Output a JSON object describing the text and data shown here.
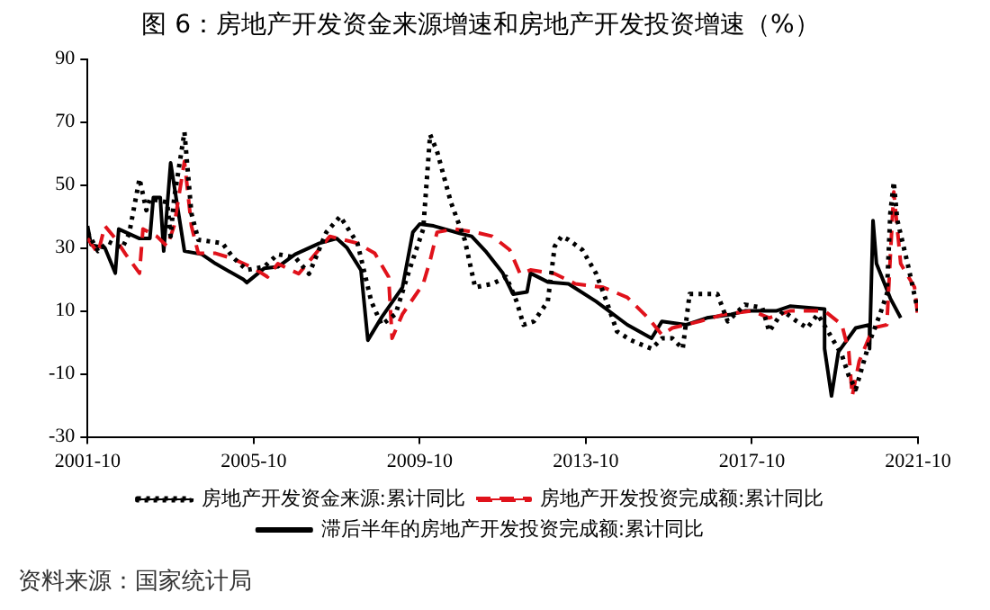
{
  "chart_data": {
    "type": "line",
    "title": "图 6：房地产开发资金来源增速和房地产开发投资增速（%）",
    "xlim": [
      "2001-10",
      "2021-10"
    ],
    "xticks": [
      "2001-10",
      "2005-10",
      "2009-10",
      "2013-10",
      "2017-10",
      "2021-10"
    ],
    "ylim": [
      -30,
      90
    ],
    "yticks": [
      -30,
      -10,
      10,
      30,
      50,
      70,
      90
    ],
    "grid": false,
    "legend": "bottom",
    "marker": "none",
    "series": [
      {
        "name": "房地产开发资金来源:累计同比",
        "color": "#000000",
        "line_style": "dotted",
        "x": [
          "2001-10",
          "2002-01",
          "2002-04",
          "2002-08",
          "2002-10",
          "2003-01",
          "2003-03",
          "2003-04",
          "2003-09",
          "2003-10",
          "2003-11",
          "2004-02",
          "2004-04",
          "2004-06",
          "2005-01",
          "2005-04",
          "2005-08",
          "2006-01",
          "2006-05",
          "2006-10",
          "2007-02",
          "2007-07",
          "2007-11",
          "2008-04",
          "2008-08",
          "2008-11",
          "2009-03",
          "2009-07",
          "2009-11",
          "2010-01",
          "2010-03",
          "2010-07",
          "2010-11",
          "2011-02",
          "2011-07",
          "2011-11",
          "2012-02",
          "2012-04",
          "2012-07",
          "2012-11",
          "2013-01",
          "2013-03",
          "2013-05",
          "2013-09",
          "2014-01",
          "2014-04",
          "2014-07",
          "2014-11",
          "2015-05",
          "2015-08",
          "2015-11",
          "2016-02",
          "2016-04",
          "2016-08",
          "2016-12",
          "2017-03",
          "2017-08",
          "2018-01",
          "2018-03",
          "2018-07",
          "2018-11",
          "2019-02",
          "2019-05",
          "2019-08",
          "2019-12",
          "2020-02",
          "2020-04",
          "2020-08",
          "2020-11",
          "2021-01",
          "2021-02",
          "2021-03",
          "2021-04",
          "2021-07",
          "2021-10"
        ],
        "values": [
          35,
          29,
          32,
          30,
          34.5,
          52,
          42,
          45.6,
          44.5,
          33.7,
          45.6,
          66.8,
          41,
          32.6,
          31.5,
          27,
          23,
          24,
          28,
          27,
          21.8,
          35,
          40,
          31.5,
          13,
          5.6,
          9,
          23,
          36,
          66,
          60.7,
          44.5,
          32.6,
          17.5,
          18.6,
          20.8,
          13,
          5.6,
          6.7,
          13,
          30.5,
          33.7,
          32.6,
          29.4,
          21.8,
          13,
          3.5,
          0.7,
          -2,
          1.3,
          1.3,
          -2,
          15.4,
          15.4,
          15.4,
          6.7,
          12,
          11,
          3.5,
          10,
          6.7,
          4.6,
          8.9,
          3.5,
          -4,
          -10.6,
          -14.9,
          0.2,
          8.9,
          15.4,
          41,
          51,
          39,
          25,
          10
        ]
      },
      {
        "name": "房地产开发投资完成额:累计同比",
        "color": "#e0121b",
        "line_style": "dashed",
        "x": [
          "2001-10",
          "2002-01",
          "2002-03",
          "2002-06",
          "2002-09",
          "2003-01",
          "2003-02",
          "2003-06",
          "2003-09",
          "2003-11",
          "2004-02",
          "2004-04",
          "2004-06",
          "2004-11",
          "2005-04",
          "2005-10",
          "2006-02",
          "2006-05",
          "2006-11",
          "2007-03",
          "2007-08",
          "2008-04",
          "2008-09",
          "2009-01",
          "2009-02",
          "2009-05",
          "2009-11",
          "2010-01",
          "2010-03",
          "2010-08",
          "2011-02",
          "2011-07",
          "2011-12",
          "2012-03",
          "2012-06",
          "2013-01",
          "2013-07",
          "2014-03",
          "2014-10",
          "2015-04",
          "2015-08",
          "2015-11",
          "2016-07",
          "2017-02",
          "2017-10",
          "2018-03",
          "2018-09",
          "2019-07",
          "2019-12",
          "2020-02",
          "2020-03",
          "2020-05",
          "2020-09",
          "2021-01",
          "2021-02",
          "2021-03",
          "2021-05",
          "2021-09",
          "2021-10"
        ],
        "values": [
          33,
          28.3,
          37,
          33,
          28,
          22,
          36,
          33.7,
          30.5,
          37,
          57.5,
          37,
          28.3,
          28.3,
          26.6,
          23.6,
          20.8,
          25,
          21.8,
          27,
          33.7,
          31.5,
          28.3,
          20.8,
          1.3,
          9,
          18.6,
          26,
          35,
          36,
          35,
          33.7,
          29.4,
          21.8,
          23,
          21.8,
          18.6,
          17.5,
          14.3,
          7.8,
          2.4,
          4.6,
          6.7,
          8.9,
          10,
          7.8,
          10,
          10,
          5.6,
          -3,
          -17,
          -6,
          4.6,
          5.6,
          27.2,
          47.8,
          25,
          17.5,
          7.8
        ]
      },
      {
        "name": "滞后半年的房地产开发投资完成额:累计同比",
        "color": "#000000",
        "line_style": "solid",
        "x": [
          "2001-10",
          "2001-11",
          "2002-03",
          "2002-06",
          "2002-07",
          "2003-01",
          "2003-04",
          "2003-05",
          "2003-07",
          "2003-08",
          "2003-10",
          "2004-02",
          "2004-07",
          "2004-11",
          "2005-07",
          "2005-08",
          "2006-01",
          "2006-05",
          "2006-10",
          "2007-05",
          "2007-10",
          "2008-01",
          "2008-05",
          "2008-07",
          "2008-11",
          "2009-05",
          "2009-08",
          "2009-10",
          "2010-02",
          "2010-10",
          "2011-01",
          "2011-05",
          "2011-10",
          "2012-01",
          "2012-05",
          "2012-06",
          "2012-11",
          "2013-05",
          "2014-01",
          "2014-10",
          "2015-05",
          "2015-08",
          "2016-03",
          "2016-09",
          "2017-04",
          "2017-08",
          "2018-05",
          "2018-09",
          "2019-07",
          "2019-07",
          "2019-09",
          "2019-11",
          "2020-04",
          "2020-08",
          "2020-08",
          "2020-09",
          "2020-10",
          "2021-02",
          "2021-05"
        ],
        "values": [
          37,
          31,
          30,
          22,
          36,
          33,
          33,
          46,
          46,
          29,
          57,
          29,
          28,
          25,
          20,
          19,
          23.5,
          24,
          28,
          31.5,
          33,
          30,
          23,
          0.7,
          8,
          17.5,
          35,
          37.6,
          37,
          34.5,
          33.7,
          29,
          22,
          15.3,
          16,
          22,
          19.2,
          18.6,
          13,
          5.6,
          1.3,
          6.7,
          5.6,
          7.8,
          8.9,
          10,
          10,
          11.5,
          10.6,
          -2,
          -17,
          -3,
          4.6,
          5.6,
          -2,
          38.7,
          25,
          14,
          7.8
        ]
      }
    ],
    "annotations": [
      "资料来源：国家统计局"
    ]
  }
}
